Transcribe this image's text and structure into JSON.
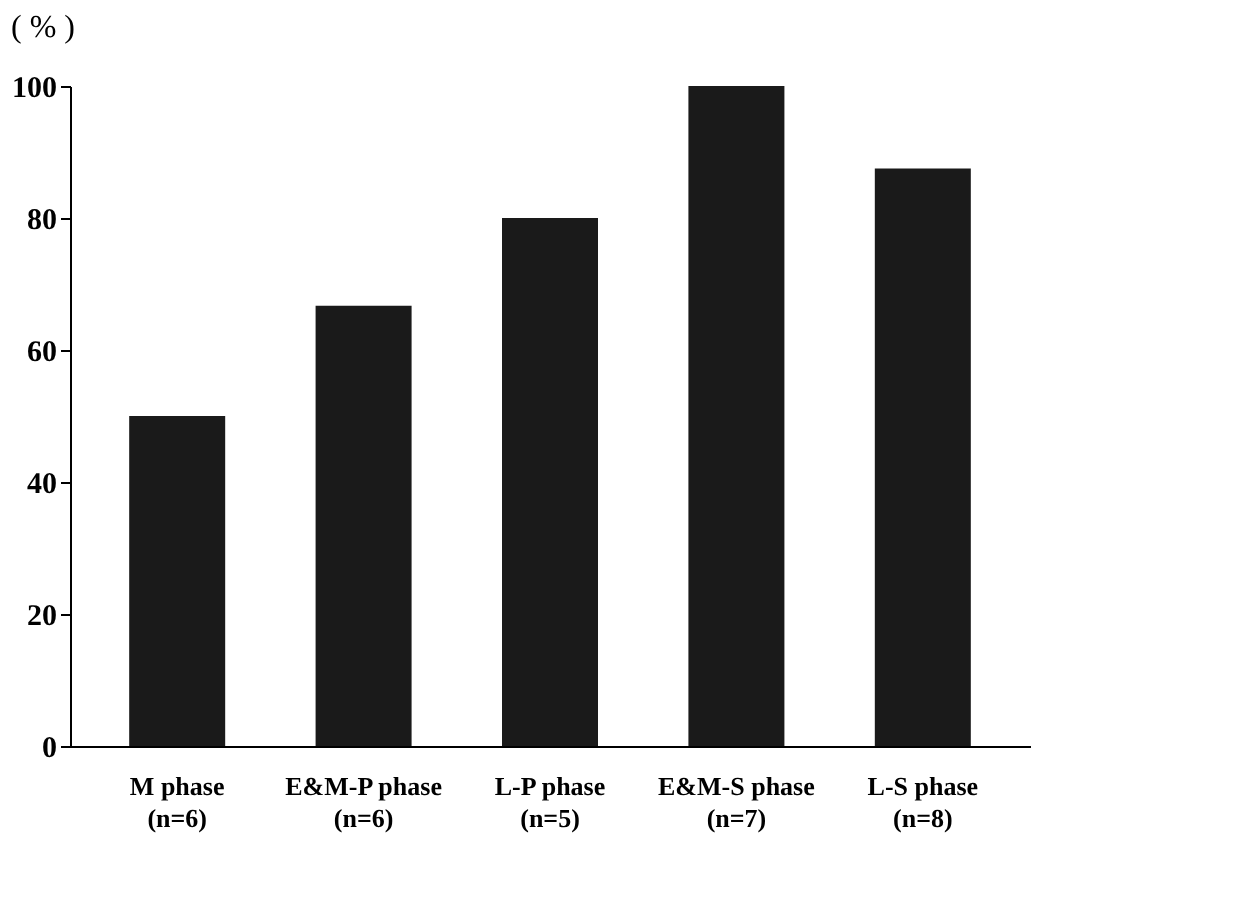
{
  "chart_data": {
    "type": "bar",
    "ylabel": "( % )",
    "categories": [
      "M  phase\n\n(n=6)",
      "E&M-P phase\n\n(n=6)",
      "L-P phase\n\n(n=5)",
      "E&M-S phase\n\n(n=7)",
      "L-S phase\n\n(n=8)"
    ],
    "values": [
      50,
      66.7,
      80,
      100,
      87.5
    ],
    "color": "#1a1a1a",
    "ylim": [
      0,
      100
    ],
    "yticks": [
      0,
      20,
      40,
      60,
      80,
      100
    ],
    "grid": false
  }
}
